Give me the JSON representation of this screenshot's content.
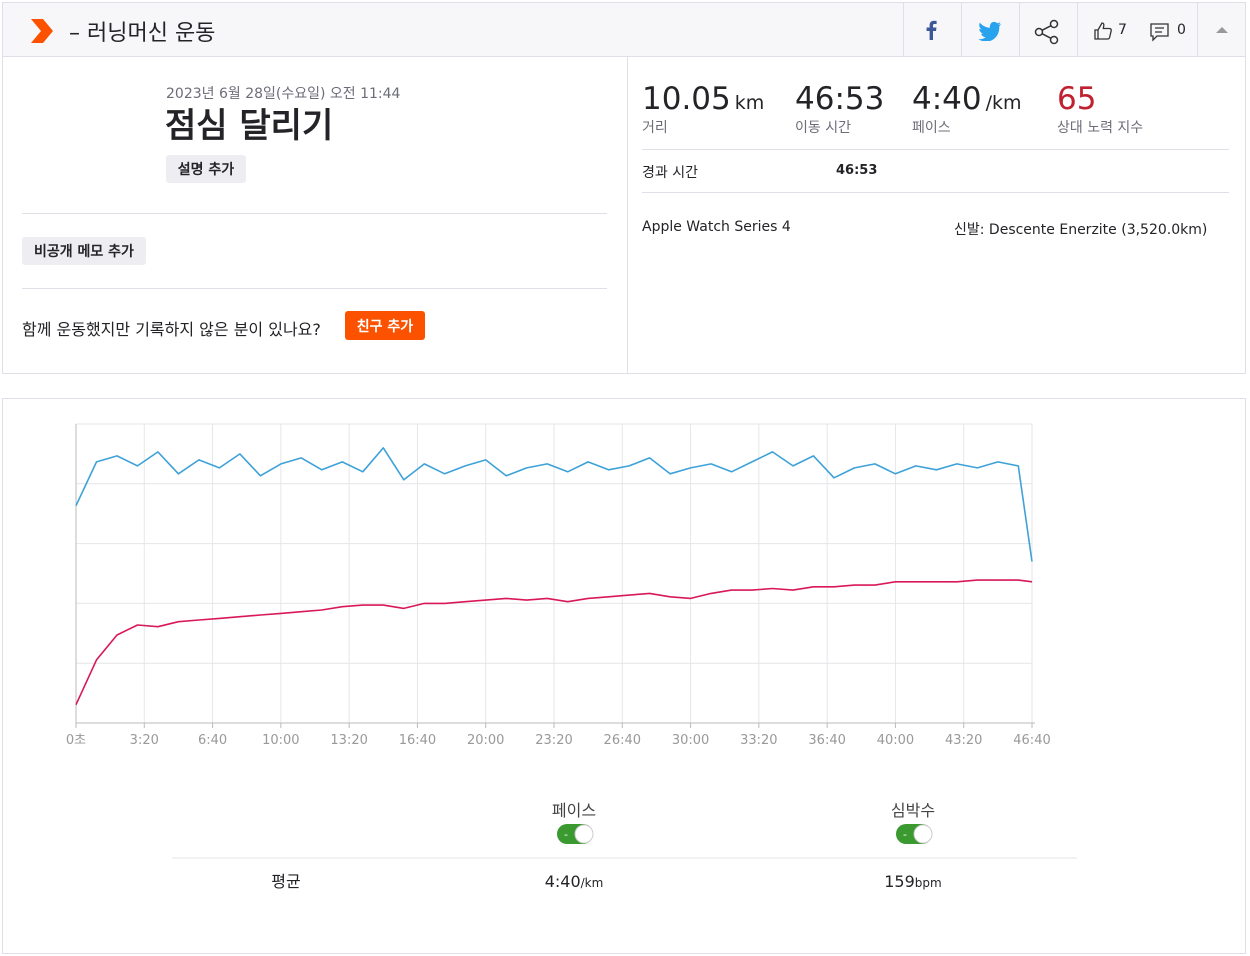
{
  "header": {
    "title": "– 러닝머신 운동",
    "likes": 7,
    "comments": 0
  },
  "activity": {
    "date": "2023년 6월 28일(수요일) 오전 11:44",
    "name": "점심 달리기",
    "add_description": "설명 추가",
    "private_note": "비공개 메모 추가",
    "prompt": "함께 운동했지만 기록하지 않은 분이 있나요?",
    "add_friend": "친구 추가"
  },
  "stats": [
    {
      "value": 10.05,
      "unit": "km",
      "label": "거리"
    },
    {
      "value": "46:53",
      "label": "이동 시간"
    },
    {
      "value": "4:40",
      "unit": "/km",
      "label": "페이스"
    },
    {
      "value": 65,
      "label": "상대 노력 지수"
    }
  ],
  "elapsed": {
    "label": "경과 시간",
    "value": "46:53"
  },
  "device": "Apple Watch Series 4",
  "shoes": "신발: Descente Enerzite (3,520.0km)",
  "chart_data": {
    "type": "line",
    "x": [
      0,
      60,
      120,
      180,
      240,
      300,
      360,
      420,
      480,
      540,
      600,
      660,
      720,
      780,
      840,
      900,
      960,
      1020,
      1080,
      1140,
      1200,
      1260,
      1320,
      1380,
      1440,
      1500,
      1560,
      1620,
      1680,
      1740,
      1800,
      1860,
      1920,
      1980,
      2040,
      2100,
      2160,
      2220,
      2280,
      2340,
      2400,
      2460,
      2520,
      2580,
      2640,
      2700,
      2760,
      2800
    ],
    "xlim": [
      0,
      2800
    ],
    "xticks": [
      {
        "value": 0,
        "label": "0초"
      },
      {
        "value": 200,
        "label": "3:20"
      },
      {
        "value": 400,
        "label": "6:40"
      },
      {
        "value": 600,
        "label": "10:00"
      },
      {
        "value": 800,
        "label": "13:20"
      },
      {
        "value": 1000,
        "label": "16:40"
      },
      {
        "value": 1200,
        "label": "20:00"
      },
      {
        "value": 1400,
        "label": "23:20"
      },
      {
        "value": 1600,
        "label": "26:40"
      },
      {
        "value": 1800,
        "label": "30:00"
      },
      {
        "value": 2000,
        "label": "33:20"
      },
      {
        "value": 2200,
        "label": "36:40"
      },
      {
        "value": 2400,
        "label": "40:00"
      },
      {
        "value": 2600,
        "label": "43:20"
      },
      {
        "value": 2800,
        "label": "46:40"
      }
    ],
    "ylim": [
      0,
      15
    ],
    "y2lim": [
      80,
      260
    ],
    "grid": true,
    "series": [
      {
        "name": "페이스",
        "color": "#3ea2d8",
        "values": [
          10.9,
          13.1,
          13.4,
          12.9,
          13.6,
          12.5,
          13.2,
          12.8,
          13.5,
          12.4,
          13.0,
          13.3,
          12.7,
          13.1,
          12.6,
          13.8,
          12.2,
          13.0,
          12.5,
          12.9,
          13.2,
          12.4,
          12.8,
          13.0,
          12.6,
          13.1,
          12.7,
          12.9,
          13.3,
          12.5,
          12.8,
          13.0,
          12.6,
          13.1,
          13.6,
          12.9,
          13.4,
          12.3,
          12.8,
          13.0,
          12.5,
          12.9,
          12.7,
          13.0,
          12.8,
          13.1,
          12.9,
          8.1
        ]
      },
      {
        "name": "심박수",
        "color": "#d9185a",
        "axis": "y2",
        "values": [
          91,
          118,
          133,
          139,
          138,
          141,
          142,
          143,
          144,
          145,
          146,
          147,
          148,
          150,
          151,
          151,
          149,
          152,
          152,
          153,
          154,
          155,
          154,
          155,
          153,
          155,
          156,
          157,
          158,
          156,
          155,
          158,
          160,
          160,
          161,
          160,
          162,
          162,
          163,
          163,
          165,
          165,
          165,
          165,
          166,
          166,
          166,
          165
        ]
      }
    ],
    "toggle_text": "-"
  },
  "summary": {
    "label": "평균",
    "pace": {
      "value": "4:40",
      "unit": "/km"
    },
    "heart_rate": {
      "value": 159,
      "unit": "bpm"
    }
  }
}
